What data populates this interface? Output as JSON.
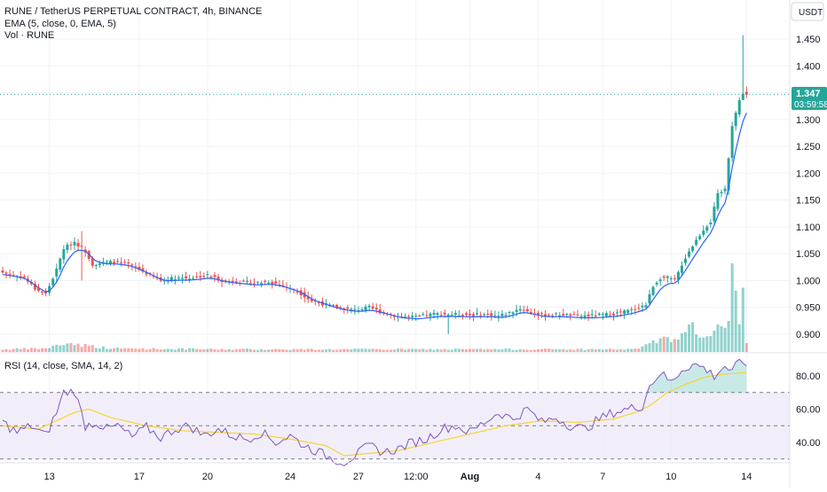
{
  "header": {
    "symbol_line": "RUNE / TetherUS PERPETUAL CONTRACT, 4h, BINANCE",
    "ema_line": "EMA (5, close, 0, EMA, 5)",
    "vol_line": "Vol · RUNE",
    "rsi_line": "RSI (14, close, SMA, 14, 2)",
    "currency": "USDT"
  },
  "price_tag": {
    "price": "1.347",
    "countdown": "03:59:58"
  },
  "colors": {
    "up": "#26a69a",
    "down": "#ef5350",
    "ema": "#2962ff",
    "rsi": "#7e57c2",
    "rsi_ma": "#f5d33a",
    "rsi_band": "#ede7f6",
    "grid": "#f0f3fa",
    "axis_text": "#131722",
    "dotted": "#26a69a"
  },
  "chart_data": [
    {
      "type": "candlestick",
      "title": "RUNE / TetherUS PERPETUAL CONTRACT, 4h, BINANCE",
      "yticks": [
        "1.450",
        "1.400",
        "1.350",
        "1.300",
        "1.250",
        "1.200",
        "1.150",
        "1.100",
        "1.050",
        "1.000",
        "0.950",
        "0.900"
      ],
      "ylim": [
        0.875,
        1.475
      ],
      "xticks": [
        "13",
        "17",
        "20",
        "24",
        "27",
        "12:00",
        "Aug",
        "4",
        "7",
        "10",
        "14"
      ],
      "last_price": 1.347,
      "ema_period": 5,
      "keyframes_close": [
        [
          0,
          1.015
        ],
        [
          6,
          1.005
        ],
        [
          9,
          0.985
        ],
        [
          12,
          0.975
        ],
        [
          15,
          1.02
        ],
        [
          17,
          1.06
        ],
        [
          20,
          1.072
        ],
        [
          23,
          1.055
        ],
        [
          25,
          1.03
        ],
        [
          28,
          1.033
        ],
        [
          31,
          1.035
        ],
        [
          35,
          1.03
        ],
        [
          38,
          1.02
        ],
        [
          41,
          1.01
        ],
        [
          44,
          1.0
        ],
        [
          48,
          1.005
        ],
        [
          52,
          1.005
        ],
        [
          57,
          1.01
        ],
        [
          61,
          1.0
        ],
        [
          65,
          0.998
        ],
        [
          70,
          0.995
        ],
        [
          74,
          0.998
        ],
        [
          78,
          0.99
        ],
        [
          82,
          0.98
        ],
        [
          86,
          0.962
        ],
        [
          90,
          0.955
        ],
        [
          94,
          0.948
        ],
        [
          98,
          0.945
        ],
        [
          102,
          0.95
        ],
        [
          105,
          0.942
        ],
        [
          110,
          0.933
        ],
        [
          115,
          0.932
        ],
        [
          120,
          0.938
        ],
        [
          125,
          0.937
        ],
        [
          130,
          0.936
        ],
        [
          135,
          0.937
        ],
        [
          138,
          0.934
        ],
        [
          141,
          0.94
        ],
        [
          144,
          0.948
        ],
        [
          147,
          0.94
        ],
        [
          150,
          0.935
        ],
        [
          155,
          0.937
        ],
        [
          160,
          0.934
        ],
        [
          165,
          0.935
        ],
        [
          170,
          0.938
        ],
        [
          175,
          0.945
        ],
        [
          179,
          0.955
        ],
        [
          181,
          0.99
        ],
        [
          183,
          1.005
        ],
        [
          185,
          1.005
        ],
        [
          187,
          1.0
        ],
        [
          189,
          1.03
        ],
        [
          191,
          1.055
        ],
        [
          193,
          1.075
        ],
        [
          195,
          1.095
        ],
        [
          197,
          1.11
        ],
        [
          199,
          1.16
        ],
        [
          201,
          1.17
        ],
        [
          203,
          1.29
        ],
        [
          205,
          1.335
        ],
        [
          206,
          1.35
        ],
        [
          207,
          1.347
        ]
      ],
      "keyframes_volume": [
        [
          0,
          3
        ],
        [
          12,
          4
        ],
        [
          18,
          10
        ],
        [
          22,
          8
        ],
        [
          30,
          4
        ],
        [
          60,
          3
        ],
        [
          100,
          3
        ],
        [
          150,
          3
        ],
        [
          176,
          3
        ],
        [
          180,
          10
        ],
        [
          184,
          14
        ],
        [
          188,
          12
        ],
        [
          190,
          22
        ],
        [
          192,
          28
        ],
        [
          194,
          18
        ],
        [
          196,
          24
        ],
        [
          198,
          20
        ],
        [
          200,
          28
        ],
        [
          202,
          45
        ],
        [
          203,
          100
        ],
        [
          204,
          55
        ],
        [
          205,
          30
        ],
        [
          206,
          95
        ],
        [
          207,
          10
        ]
      ],
      "spikes": [
        {
          "index": 22,
          "high": 1.092,
          "low": 1.0
        },
        {
          "index": 124,
          "low": 0.9
        },
        {
          "index": 206,
          "high": 1.457,
          "low": 1.338
        }
      ]
    },
    {
      "type": "line",
      "title": "RSI (14, close, SMA, 14, 2)",
      "yticks": [
        "80.00",
        "60.00",
        "40.00"
      ],
      "ylim": [
        25,
        90
      ],
      "bands": [
        30,
        50,
        70
      ],
      "series": [
        {
          "name": "RSI",
          "keyframes": [
            [
              0,
              52
            ],
            [
              4,
              46
            ],
            [
              8,
              50
            ],
            [
              12,
              44
            ],
            [
              15,
              58
            ],
            [
              17,
              70
            ],
            [
              20,
              71
            ],
            [
              23,
              50
            ],
            [
              26,
              52
            ],
            [
              29,
              48
            ],
            [
              32,
              50
            ],
            [
              36,
              43
            ],
            [
              40,
              49
            ],
            [
              44,
              43
            ],
            [
              48,
              48
            ],
            [
              52,
              50
            ],
            [
              56,
              44
            ],
            [
              60,
              48
            ],
            [
              64,
              44
            ],
            [
              68,
              42
            ],
            [
              72,
              46
            ],
            [
              76,
              40
            ],
            [
              80,
              44
            ],
            [
              84,
              38
            ],
            [
              88,
              34
            ],
            [
              92,
              30
            ],
            [
              95,
              28
            ],
            [
              98,
              32
            ],
            [
              102,
              38
            ],
            [
              106,
              34
            ],
            [
              110,
              36
            ],
            [
              114,
              40
            ],
            [
              118,
              42
            ],
            [
              122,
              48
            ],
            [
              126,
              50
            ],
            [
              130,
              46
            ],
            [
              134,
              52
            ],
            [
              138,
              58
            ],
            [
              142,
              54
            ],
            [
              146,
              60
            ],
            [
              150,
              52
            ],
            [
              154,
              55
            ],
            [
              158,
              50
            ],
            [
              162,
              48
            ],
            [
              166,
              54
            ],
            [
              170,
              58
            ],
            [
              174,
              60
            ],
            [
              178,
              62
            ],
            [
              180,
              74
            ],
            [
              183,
              82
            ],
            [
              186,
              76
            ],
            [
              189,
              84
            ],
            [
              192,
              87
            ],
            [
              195,
              85
            ],
            [
              198,
              80
            ],
            [
              201,
              86
            ],
            [
              203,
              82
            ],
            [
              205,
              89
            ],
            [
              207,
              88
            ]
          ]
        },
        {
          "name": "RSI MA",
          "keyframes": [
            [
              0,
              50
            ],
            [
              10,
              48
            ],
            [
              20,
              58
            ],
            [
              24,
              60
            ],
            [
              30,
              55
            ],
            [
              40,
              50
            ],
            [
              50,
              47
            ],
            [
              60,
              46
            ],
            [
              70,
              45
            ],
            [
              80,
              42
            ],
            [
              90,
              38
            ],
            [
              95,
              32
            ],
            [
              100,
              33
            ],
            [
              110,
              35
            ],
            [
              120,
              40
            ],
            [
              130,
              45
            ],
            [
              140,
              50
            ],
            [
              150,
              53
            ],
            [
              160,
              52
            ],
            [
              170,
              54
            ],
            [
              176,
              58
            ],
            [
              180,
              62
            ],
            [
              185,
              70
            ],
            [
              190,
              75
            ],
            [
              195,
              79
            ],
            [
              200,
              81
            ],
            [
              207,
              82
            ]
          ]
        }
      ]
    }
  ]
}
